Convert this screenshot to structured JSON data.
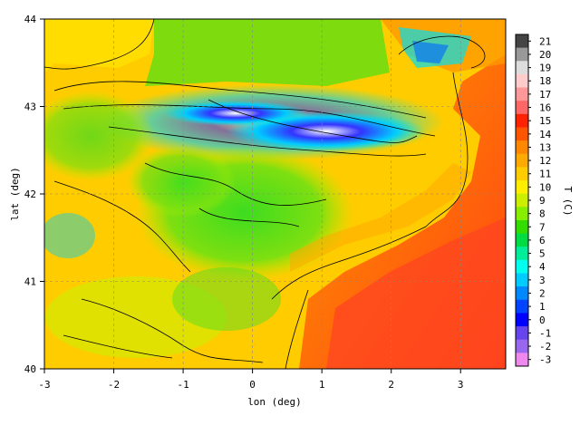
{
  "chart_data": {
    "type": "heatmap",
    "xlabel": "lon (deg)",
    "ylabel": "lat (deg)",
    "colorbar_label": "T (C)",
    "xlim": [
      -3,
      3.65
    ],
    "ylim": [
      40,
      44
    ],
    "x_ticks": [
      -3,
      -2,
      -1,
      0,
      1,
      2,
      3
    ],
    "y_ticks": [
      40,
      41,
      42,
      43,
      44
    ],
    "colorbar_ticks": [
      -3,
      -2,
      -1,
      0,
      1,
      2,
      3,
      4,
      5,
      6,
      7,
      8,
      9,
      10,
      11,
      12,
      13,
      14,
      15,
      16,
      17,
      18,
      19,
      20,
      21
    ],
    "colorbar_range": [
      -3,
      21
    ],
    "grid": true,
    "colorbar_colors": [
      "#ee88ee",
      "#9966ee",
      "#6644ee",
      "#0000ff",
      "#0044ff",
      "#0088ff",
      "#00ccff",
      "#00ffee",
      "#00ee99",
      "#00dd44",
      "#33dd00",
      "#88ee00",
      "#ccee00",
      "#ffee00",
      "#ffcc00",
      "#ffaa00",
      "#ff8800",
      "#ff5500",
      "#ff2200",
      "#ff6666",
      "#ff9999",
      "#ffcccc",
      "#dddddd",
      "#999999",
      "#444444"
    ]
  }
}
